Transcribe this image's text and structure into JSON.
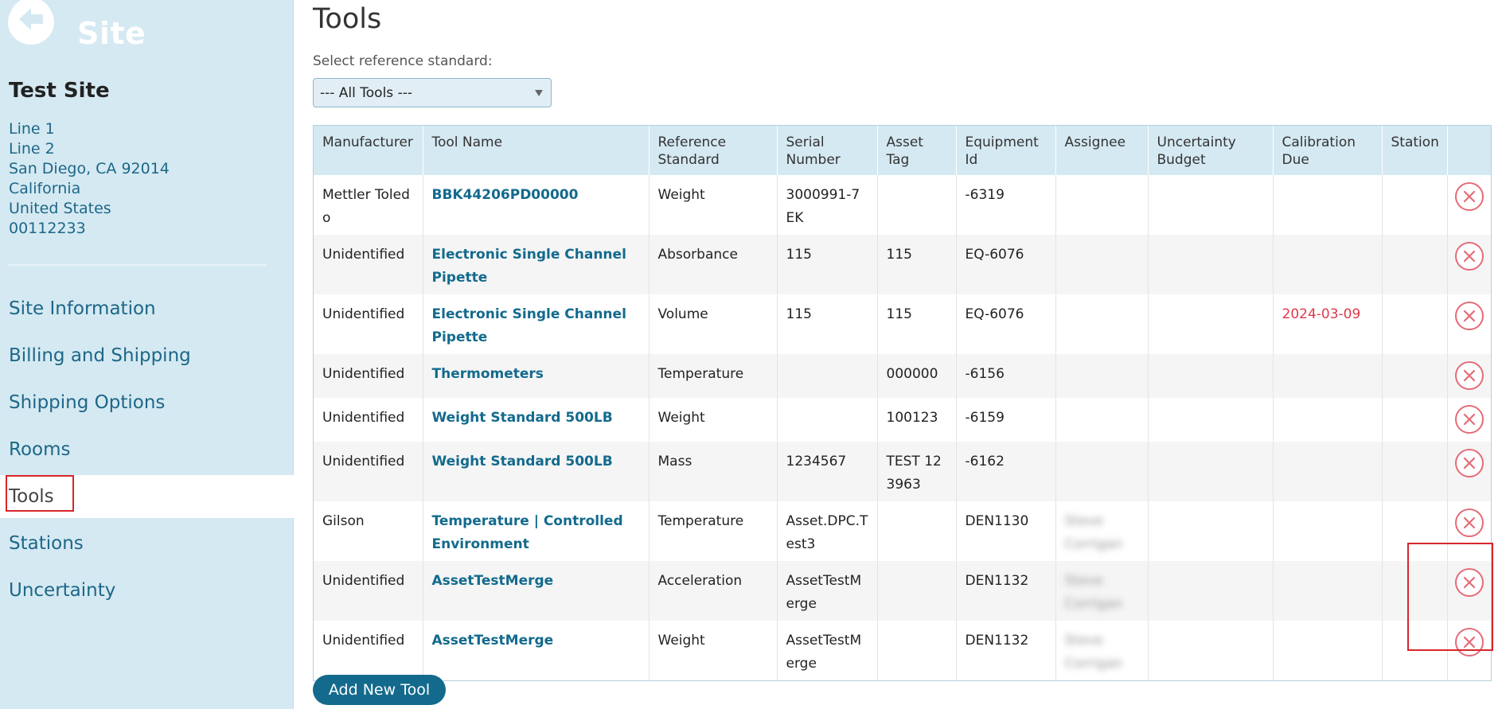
{
  "sidebar": {
    "heading": "Site",
    "site_name": "Test Site",
    "address_lines": [
      "Line 1",
      "Line 2",
      "San Diego, CA 92014",
      "California",
      "United States",
      "00112233"
    ],
    "nav": [
      {
        "label": "Site Information",
        "active": false
      },
      {
        "label": "Billing and Shipping",
        "active": false
      },
      {
        "label": "Shipping Options",
        "active": false
      },
      {
        "label": "Rooms",
        "active": false
      },
      {
        "label": "Tools",
        "active": true
      },
      {
        "label": "Stations",
        "active": false
      },
      {
        "label": "Uncertainty",
        "active": false
      }
    ],
    "icons": {
      "back": "back-arrow-icon"
    }
  },
  "main": {
    "title": "Tools",
    "select_label": "Select reference standard:",
    "select_value": "--- All Tools ---",
    "table": {
      "headers": [
        "Manufacturer",
        "Tool Name",
        "Reference Standard",
        "Serial Number",
        "Asset Tag",
        "Equipment Id",
        "Assignee",
        "Uncertainty Budget",
        "Calibration Due",
        "Station",
        ""
      ],
      "rows": [
        {
          "manufacturer": "Mettler Toledo",
          "tool_name": "BBK44206PD00000",
          "reference_standard": "Weight",
          "serial_number": "3000991-7EK",
          "asset_tag": "",
          "equipment_id": "-6319",
          "assignee": "",
          "uncertainty_budget": "",
          "calibration_due": "",
          "station": ""
        },
        {
          "manufacturer": "Unidentified",
          "tool_name": "Electronic Single Channel Pipette",
          "reference_standard": "Absorbance",
          "serial_number": "115",
          "asset_tag": "115",
          "equipment_id": "EQ-6076",
          "assignee": "",
          "uncertainty_budget": "",
          "calibration_due": "",
          "station": ""
        },
        {
          "manufacturer": "Unidentified",
          "tool_name": "Electronic Single Channel Pipette",
          "reference_standard": "Volume",
          "serial_number": "115",
          "asset_tag": "115",
          "equipment_id": "EQ-6076",
          "assignee": "",
          "uncertainty_budget": "",
          "calibration_due": "2024-03-09",
          "station": ""
        },
        {
          "manufacturer": "Unidentified",
          "tool_name": "Thermometers",
          "reference_standard": "Temperature",
          "serial_number": "",
          "asset_tag": "000000",
          "equipment_id": "-6156",
          "assignee": "",
          "uncertainty_budget": "",
          "calibration_due": "",
          "station": ""
        },
        {
          "manufacturer": "Unidentified",
          "tool_name": "Weight Standard 500LB",
          "reference_standard": "Weight",
          "serial_number": "",
          "asset_tag": "100123",
          "equipment_id": "-6159",
          "assignee": "",
          "uncertainty_budget": "",
          "calibration_due": "",
          "station": ""
        },
        {
          "manufacturer": "Unidentified",
          "tool_name": "Weight Standard 500LB",
          "reference_standard": "Mass",
          "serial_number": "1234567",
          "asset_tag": "TEST 123963",
          "equipment_id": "-6162",
          "assignee": "",
          "uncertainty_budget": "",
          "calibration_due": "",
          "station": ""
        },
        {
          "manufacturer": "Gilson",
          "tool_name": "Temperature | Controlled Environment",
          "reference_standard": "Temperature",
          "serial_number": "Asset.DPC.Test3",
          "asset_tag": "",
          "equipment_id": "DEN1130",
          "assignee": "Steve Corrigan",
          "uncertainty_budget": "",
          "calibration_due": "",
          "station": ""
        },
        {
          "manufacturer": "Unidentified",
          "tool_name": "AssetTestMerge",
          "reference_standard": "Acceleration",
          "serial_number": "AssetTestMerge",
          "asset_tag": "",
          "equipment_id": "DEN1132",
          "assignee": "Steve Corrigan",
          "uncertainty_budget": "",
          "calibration_due": "",
          "station": ""
        },
        {
          "manufacturer": "Unidentified",
          "tool_name": "AssetTestMerge",
          "reference_standard": "Weight",
          "serial_number": "AssetTestMerge",
          "asset_tag": "",
          "equipment_id": "DEN1132",
          "assignee": "Steve Corrigan",
          "uncertainty_budget": "",
          "calibration_due": "",
          "station": ""
        }
      ]
    },
    "add_button": "Add New Tool"
  },
  "colors": {
    "sidebar_bg": "#d5e9f2",
    "link": "#136a8d",
    "due_overdue": "#e0384a",
    "delete_icon": "#e56b78",
    "highlight": "#d7262b"
  }
}
